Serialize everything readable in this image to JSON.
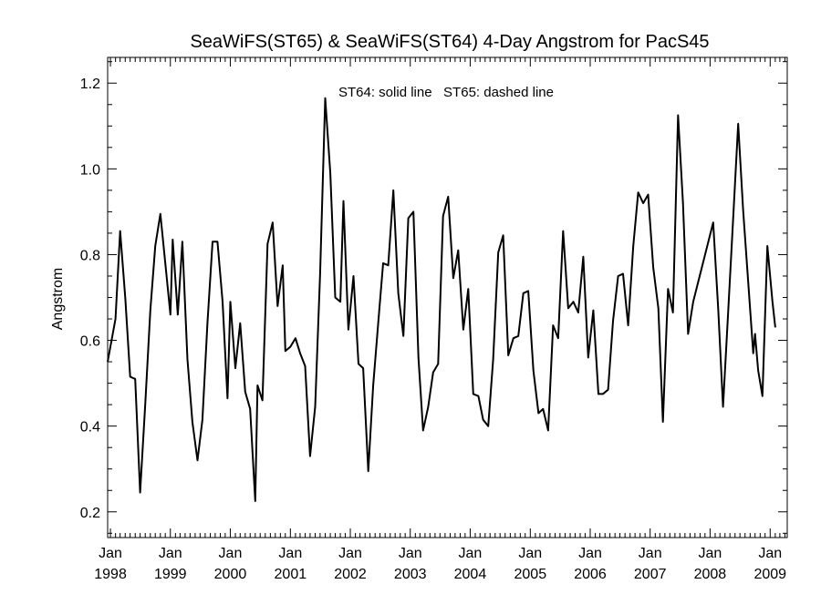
{
  "chart_data": {
    "type": "line",
    "title": "SeaWiFS(ST65) & SeaWiFS(ST64) 4-Day Angstrom for PacS45",
    "ylabel": "Angstrom",
    "xlabel": "",
    "annotation": "ST64: solid line   ST65: dashed line",
    "ylim": [
      0.14,
      1.26
    ],
    "xlim": [
      "1997-12-15",
      "2009-04-15"
    ],
    "yticks": [
      {
        "value": 0.2,
        "label": "0.2"
      },
      {
        "value": 0.4,
        "label": "0.4"
      },
      {
        "value": 0.6,
        "label": "0.6"
      },
      {
        "value": 0.8,
        "label": "0.8"
      },
      {
        "value": 1.0,
        "label": "1.0"
      },
      {
        "value": 1.2,
        "label": "1.2"
      }
    ],
    "xticks": [
      {
        "date": "1998-01-01",
        "month": "Jan",
        "year": "1998"
      },
      {
        "date": "1999-01-01",
        "month": "Jan",
        "year": "1999"
      },
      {
        "date": "2000-01-01",
        "month": "Jan",
        "year": "2000"
      },
      {
        "date": "2001-01-01",
        "month": "Jan",
        "year": "2001"
      },
      {
        "date": "2002-01-01",
        "month": "Jan",
        "year": "2002"
      },
      {
        "date": "2003-01-01",
        "month": "Jan",
        "year": "2003"
      },
      {
        "date": "2004-01-01",
        "month": "Jan",
        "year": "2004"
      },
      {
        "date": "2005-01-01",
        "month": "Jan",
        "year": "2005"
      },
      {
        "date": "2006-01-01",
        "month": "Jan",
        "year": "2006"
      },
      {
        "date": "2007-01-01",
        "month": "Jan",
        "year": "2007"
      },
      {
        "date": "2008-01-01",
        "month": "Jan",
        "year": "2008"
      },
      {
        "date": "2009-01-01",
        "month": "Jan",
        "year": "2009"
      }
    ],
    "minor_ticks_per_year": 12,
    "grid": false,
    "series": [
      {
        "color": "#000000",
        "dash": "solid",
        "points": [
          [
            "1997-12-15",
            0.55
          ],
          [
            "1998-02-01",
            0.65
          ],
          [
            "1998-03-01",
            0.855
          ],
          [
            "1998-04-01",
            0.7
          ],
          [
            "1998-05-01",
            0.515
          ],
          [
            "1998-06-01",
            0.51
          ],
          [
            "1998-07-01",
            0.245
          ],
          [
            "1998-08-01",
            0.45
          ],
          [
            "1998-09-01",
            0.67
          ],
          [
            "1998-10-01",
            0.82
          ],
          [
            "1998-11-01",
            0.895
          ],
          [
            "1998-12-01",
            0.78
          ],
          [
            "1999-01-01",
            0.66
          ],
          [
            "1999-01-15",
            0.835
          ],
          [
            "1999-02-15",
            0.66
          ],
          [
            "1999-03-15",
            0.83
          ],
          [
            "1999-04-15",
            0.555
          ],
          [
            "1999-05-15",
            0.41
          ],
          [
            "1999-06-15",
            0.32
          ],
          [
            "1999-07-15",
            0.415
          ],
          [
            "1999-08-15",
            0.64
          ],
          [
            "1999-09-15",
            0.83
          ],
          [
            "1999-10-15",
            0.83
          ],
          [
            "1999-11-15",
            0.69
          ],
          [
            "1999-12-15",
            0.465
          ],
          [
            "2000-01-01",
            0.69
          ],
          [
            "2000-02-01",
            0.535
          ],
          [
            "2000-03-01",
            0.64
          ],
          [
            "2000-04-01",
            0.48
          ],
          [
            "2000-05-01",
            0.44
          ],
          [
            "2000-06-01",
            0.225
          ],
          [
            "2000-06-15",
            0.495
          ],
          [
            "2000-07-15",
            0.46
          ],
          [
            "2000-08-15",
            0.825
          ],
          [
            "2000-09-15",
            0.875
          ],
          [
            "2000-10-15",
            0.68
          ],
          [
            "2000-11-15",
            0.775
          ],
          [
            "2000-12-01",
            0.575
          ],
          [
            "2001-01-01",
            0.585
          ],
          [
            "2001-02-01",
            0.605
          ],
          [
            "2001-03-01",
            0.57
          ],
          [
            "2001-04-01",
            0.54
          ],
          [
            "2001-05-01",
            0.33
          ],
          [
            "2001-06-01",
            0.445
          ],
          [
            "2001-07-01",
            0.755
          ],
          [
            "2001-08-01",
            1.165
          ],
          [
            "2001-09-01",
            0.99
          ],
          [
            "2001-10-01",
            0.7
          ],
          [
            "2001-11-01",
            0.69
          ],
          [
            "2001-11-20",
            0.925
          ],
          [
            "2001-12-20",
            0.625
          ],
          [
            "2002-01-20",
            0.75
          ],
          [
            "2002-02-20",
            0.545
          ],
          [
            "2002-03-20",
            0.535
          ],
          [
            "2002-04-20",
            0.295
          ],
          [
            "2002-05-20",
            0.495
          ],
          [
            "2002-06-20",
            0.64
          ],
          [
            "2002-07-20",
            0.78
          ],
          [
            "2002-08-20",
            0.775
          ],
          [
            "2002-09-20",
            0.95
          ],
          [
            "2002-10-20",
            0.71
          ],
          [
            "2002-11-20",
            0.61
          ],
          [
            "2002-12-20",
            0.885
          ],
          [
            "2003-01-20",
            0.9
          ],
          [
            "2003-02-20",
            0.56
          ],
          [
            "2003-03-20",
            0.39
          ],
          [
            "2003-04-20",
            0.445
          ],
          [
            "2003-05-20",
            0.525
          ],
          [
            "2003-06-20",
            0.545
          ],
          [
            "2003-07-20",
            0.89
          ],
          [
            "2003-08-20",
            0.935
          ],
          [
            "2003-09-20",
            0.745
          ],
          [
            "2003-10-20",
            0.81
          ],
          [
            "2003-11-20",
            0.625
          ],
          [
            "2003-12-20",
            0.72
          ],
          [
            "2004-01-20",
            0.475
          ],
          [
            "2004-02-20",
            0.47
          ],
          [
            "2004-03-20",
            0.415
          ],
          [
            "2004-04-20",
            0.4
          ],
          [
            "2004-05-20",
            0.555
          ],
          [
            "2004-06-20",
            0.805
          ],
          [
            "2004-07-20",
            0.845
          ],
          [
            "2004-08-20",
            0.565
          ],
          [
            "2004-09-20",
            0.605
          ],
          [
            "2004-10-20",
            0.61
          ],
          [
            "2004-11-20",
            0.71
          ],
          [
            "2004-12-20",
            0.715
          ],
          [
            "2005-01-20",
            0.53
          ],
          [
            "2005-02-20",
            0.43
          ],
          [
            "2005-03-20",
            0.44
          ],
          [
            "2005-04-20",
            0.39
          ],
          [
            "2005-05-20",
            0.635
          ],
          [
            "2005-06-20",
            0.605
          ],
          [
            "2005-07-20",
            0.855
          ],
          [
            "2005-08-20",
            0.675
          ],
          [
            "2005-09-20",
            0.69
          ],
          [
            "2005-10-20",
            0.665
          ],
          [
            "2005-11-20",
            0.795
          ],
          [
            "2005-12-20",
            0.56
          ],
          [
            "2006-01-20",
            0.67
          ],
          [
            "2006-02-20",
            0.475
          ],
          [
            "2006-03-20",
            0.475
          ],
          [
            "2006-04-20",
            0.485
          ],
          [
            "2006-05-20",
            0.645
          ],
          [
            "2006-06-20",
            0.75
          ],
          [
            "2006-07-20",
            0.755
          ],
          [
            "2006-08-20",
            0.635
          ],
          [
            "2006-09-20",
            0.82
          ],
          [
            "2006-10-20",
            0.945
          ],
          [
            "2006-11-20",
            0.92
          ],
          [
            "2006-12-20",
            0.94
          ],
          [
            "2007-01-20",
            0.77
          ],
          [
            "2007-02-20",
            0.675
          ],
          [
            "2007-03-20",
            0.41
          ],
          [
            "2007-04-20",
            0.72
          ],
          [
            "2007-05-20",
            0.665
          ],
          [
            "2007-06-20",
            1.125
          ],
          [
            "2007-07-20",
            0.92
          ],
          [
            "2007-08-20",
            0.615
          ],
          [
            "2007-09-20",
            0.69
          ],
          [
            "2008-01-20",
            0.875
          ],
          [
            "2008-02-20",
            0.67
          ],
          [
            "2008-03-20",
            0.445
          ],
          [
            "2008-04-20",
            0.665
          ],
          [
            "2008-05-20",
            0.88
          ],
          [
            "2008-06-20",
            1.105
          ],
          [
            "2008-07-20",
            0.905
          ],
          [
            "2008-09-20",
            0.57
          ],
          [
            "2008-10-01",
            0.615
          ],
          [
            "2008-10-20",
            0.53
          ],
          [
            "2008-11-15",
            0.47
          ],
          [
            "2008-12-15",
            0.82
          ],
          [
            "2009-01-15",
            0.69
          ],
          [
            "2009-02-01",
            0.63
          ]
        ]
      }
    ]
  }
}
